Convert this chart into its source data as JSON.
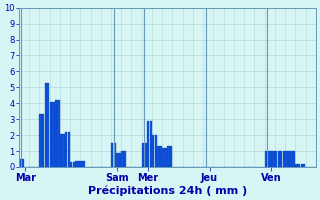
{
  "title": "Précipitations 24h ( mm )",
  "background_color": "#d8f5f5",
  "bar_color": "#1155dd",
  "bar_edge_color": "#0033aa",
  "grid_color": "#b0d8d8",
  "tick_color": "#0000aa",
  "vline_color": "#6699bb",
  "ylim": [
    0,
    10
  ],
  "yticks": [
    0,
    1,
    2,
    3,
    4,
    5,
    6,
    7,
    8,
    9,
    10
  ],
  "day_labels": [
    "Mar",
    "Sam",
    "Mer",
    "Jeu",
    "Ven"
  ],
  "day_tick_positions": [
    2,
    38,
    50,
    74,
    98
  ],
  "day_vline_positions": [
    0.5,
    36.5,
    48.5,
    72.5,
    96.5
  ],
  "total_bars": 120,
  "bar_values": [
    0.5,
    0.5,
    0.0,
    0.0,
    0.0,
    0.0,
    0.0,
    0.0,
    3.3,
    3.3,
    5.3,
    5.3,
    4.1,
    4.1,
    4.2,
    4.2,
    2.1,
    2.1,
    2.2,
    2.2,
    0.3,
    0.3,
    0.35,
    0.35,
    0.4,
    0.4,
    0.0,
    0.0,
    0.0,
    0.0,
    0.0,
    0.0,
    0.0,
    0.0,
    0.0,
    0.0,
    1.5,
    1.5,
    0.9,
    0.9,
    1.0,
    1.0,
    0.0,
    0.0,
    0.0,
    0.0,
    0.0,
    0.0,
    1.5,
    1.5,
    2.9,
    2.9,
    2.0,
    2.0,
    1.3,
    1.3,
    1.2,
    1.2,
    1.3,
    1.3,
    0.0,
    0.0,
    0.0,
    0.0,
    0.0,
    0.0,
    0.0,
    0.0,
    0.0,
    0.0,
    0.0,
    0.0,
    0.0,
    0.0,
    0.0,
    0.0,
    0.0,
    0.0,
    0.0,
    0.0,
    0.0,
    0.0,
    0.0,
    0.0,
    0.0,
    0.0,
    0.0,
    0.0,
    0.0,
    0.0,
    0.0,
    0.0,
    0.0,
    0.0,
    0.0,
    0.0,
    1.0,
    1.0,
    1.0,
    1.0,
    1.0,
    1.0,
    1.0,
    1.0,
    1.0,
    1.0,
    1.0,
    1.0,
    0.2,
    0.2,
    0.2,
    0.2,
    0.0,
    0.0,
    0.0,
    0.0
  ],
  "ytick_fontsize": 6,
  "xtick_fontsize": 7,
  "xlabel_fontsize": 8
}
